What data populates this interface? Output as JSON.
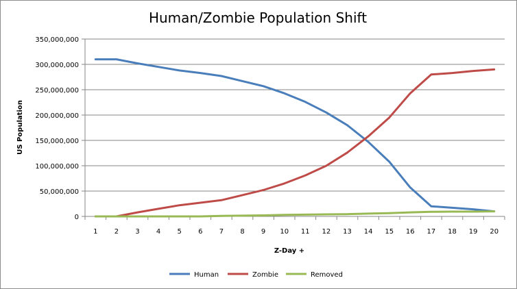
{
  "chart_data": {
    "type": "line",
    "title": "Human/Zombie Population Shift",
    "xlabel": "Z-Day +",
    "ylabel": "US Population",
    "ylim": [
      0,
      350000000
    ],
    "yticks": [
      0,
      50000000,
      100000000,
      150000000,
      200000000,
      250000000,
      300000000,
      350000000
    ],
    "ytick_labels": [
      "0",
      "50,000,000",
      "100,000,000",
      "150,000,000",
      "200,000,000",
      "250,000,000",
      "300,000,000",
      "350,000,000"
    ],
    "categories": [
      "1",
      "2",
      "3",
      "4",
      "5",
      "6",
      "7",
      "8",
      "9",
      "10",
      "11",
      "12",
      "13",
      "14",
      "15",
      "16",
      "17",
      "18",
      "19",
      "20"
    ],
    "grid": "horizontal",
    "legend_position": "bottom",
    "series": [
      {
        "name": "Human",
        "color": "#4a7ebb",
        "values": [
          310000000,
          310000000,
          302000000,
          295000000,
          288000000,
          283000000,
          277000000,
          267000000,
          257000000,
          243000000,
          226000000,
          205000000,
          180000000,
          147000000,
          108000000,
          57000000,
          20000000,
          17000000,
          14000000,
          10000000
        ]
      },
      {
        "name": "Zombie",
        "color": "#be4b48",
        "values": [
          0,
          0,
          8000000,
          15000000,
          22000000,
          27000000,
          32000000,
          42000000,
          52000000,
          65000000,
          81000000,
          100000000,
          126000000,
          158000000,
          195000000,
          243000000,
          280000000,
          283000000,
          287000000,
          290000000
        ]
      },
      {
        "name": "Removed",
        "color": "#98b954",
        "values": [
          0,
          0,
          0,
          0,
          0,
          0,
          1000000,
          1500000,
          2000000,
          3000000,
          3500000,
          4000000,
          4500000,
          5500000,
          6500000,
          8000000,
          9000000,
          9500000,
          9500000,
          10000000
        ]
      }
    ]
  }
}
